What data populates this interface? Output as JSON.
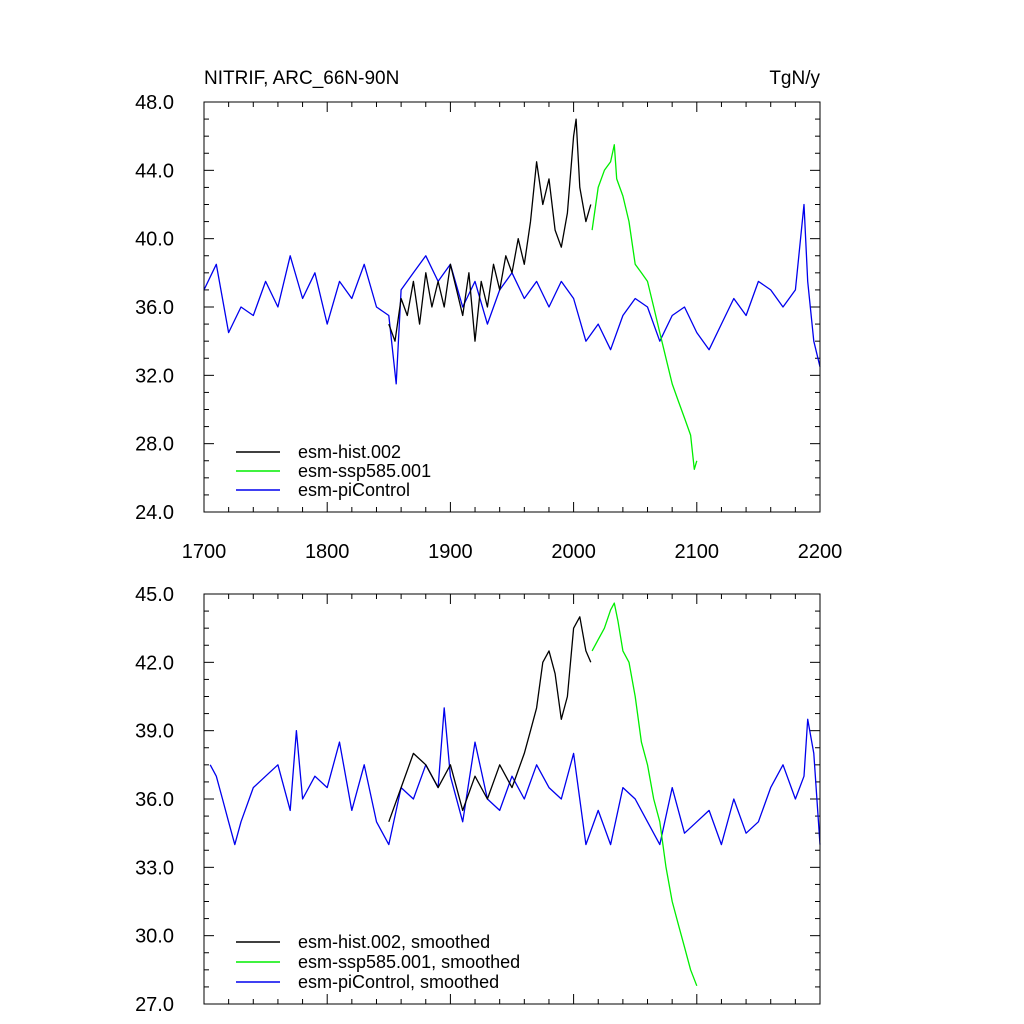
{
  "chart_data": [
    {
      "type": "line",
      "title": "NITRIF, ARC_66N-90N",
      "units": "TgN/y",
      "xlim": [
        1700,
        2200
      ],
      "ylim": [
        24,
        48
      ],
      "xticks": [
        "1700",
        "1800",
        "1900",
        "2000",
        "2100",
        "2200"
      ],
      "yticks": [
        "24.0",
        "28.0",
        "32.0",
        "36.0",
        "40.0",
        "44.0",
        "48.0"
      ],
      "legend_position": "bottom-left",
      "series": [
        {
          "name": "esm-hist.002",
          "color": "#000000",
          "x": [
            1850,
            1855,
            1860,
            1865,
            1870,
            1875,
            1880,
            1885,
            1890,
            1895,
            1900,
            1905,
            1910,
            1915,
            1920,
            1925,
            1930,
            1935,
            1940,
            1945,
            1950,
            1955,
            1960,
            1965,
            1970,
            1975,
            1980,
            1985,
            1990,
            1995,
            2000,
            2002,
            2005,
            2010,
            2014
          ],
          "y": [
            35.0,
            34.0,
            36.5,
            35.5,
            37.5,
            35.0,
            38.0,
            36.0,
            37.5,
            36.0,
            38.5,
            37.0,
            35.5,
            38.0,
            34.0,
            37.5,
            36.0,
            38.5,
            37.0,
            39.0,
            38.0,
            40.0,
            38.5,
            41.0,
            44.5,
            42.0,
            43.5,
            40.5,
            39.5,
            41.5,
            46.0,
            47.0,
            43.0,
            41.0,
            42.0
          ]
        },
        {
          "name": "esm-ssp585.001",
          "color": "#00ee00",
          "x": [
            2015,
            2020,
            2025,
            2030,
            2033,
            2035,
            2040,
            2045,
            2050,
            2055,
            2060,
            2065,
            2070,
            2075,
            2080,
            2085,
            2090,
            2095,
            2098,
            2100
          ],
          "y": [
            40.5,
            43.0,
            44.0,
            44.5,
            45.5,
            43.5,
            42.5,
            41.0,
            38.5,
            38.0,
            37.5,
            36.0,
            34.5,
            33.0,
            31.5,
            30.5,
            29.5,
            28.5,
            26.5,
            27.0
          ]
        },
        {
          "name": "esm-piControl",
          "color": "#0000ee",
          "x": [
            1700,
            1710,
            1720,
            1730,
            1740,
            1750,
            1760,
            1770,
            1780,
            1790,
            1800,
            1810,
            1820,
            1830,
            1840,
            1850,
            1856,
            1860,
            1870,
            1880,
            1890,
            1900,
            1910,
            1920,
            1930,
            1940,
            1950,
            1960,
            1970,
            1980,
            1990,
            2000,
            2010,
            2020,
            2030,
            2040,
            2050,
            2060,
            2070,
            2080,
            2090,
            2100,
            2110,
            2120,
            2130,
            2140,
            2150,
            2160,
            2170,
            2180,
            2187,
            2190,
            2195,
            2200
          ],
          "y": [
            37.0,
            38.5,
            34.5,
            36.0,
            35.5,
            37.5,
            36.0,
            39.0,
            36.5,
            38.0,
            35.0,
            37.5,
            36.5,
            38.5,
            36.0,
            35.5,
            31.5,
            37.0,
            38.0,
            39.0,
            37.5,
            38.5,
            36.0,
            37.5,
            35.0,
            37.0,
            38.0,
            36.5,
            37.5,
            36.0,
            37.5,
            36.5,
            34.0,
            35.0,
            33.5,
            35.5,
            36.5,
            36.0,
            34.0,
            35.5,
            36.0,
            34.5,
            33.5,
            35.0,
            36.5,
            35.5,
            37.5,
            37.0,
            36.0,
            37.0,
            42.0,
            37.5,
            34.0,
            32.5
          ]
        }
      ]
    },
    {
      "type": "line",
      "title": "",
      "xlim": [
        1700,
        2200
      ],
      "ylim": [
        27,
        45
      ],
      "xticks": [],
      "yticks": [
        "27.0",
        "30.0",
        "33.0",
        "36.0",
        "39.0",
        "42.0",
        "45.0"
      ],
      "legend_position": "bottom-left",
      "series": [
        {
          "name": "esm-hist.002, smoothed",
          "color": "#000000",
          "x": [
            1850,
            1860,
            1870,
            1880,
            1890,
            1900,
            1910,
            1920,
            1930,
            1940,
            1950,
            1960,
            1965,
            1970,
            1975,
            1980,
            1985,
            1990,
            1995,
            2000,
            2005,
            2010,
            2014
          ],
          "y": [
            35.0,
            36.5,
            38.0,
            37.5,
            36.5,
            37.5,
            35.5,
            37.0,
            36.0,
            37.5,
            36.5,
            38.0,
            39.0,
            40.0,
            42.0,
            42.5,
            41.5,
            39.5,
            40.5,
            43.5,
            44.0,
            42.5,
            42.0
          ]
        },
        {
          "name": "esm-ssp585.001, smoothed",
          "color": "#00ee00",
          "x": [
            2015,
            2020,
            2025,
            2030,
            2033,
            2036,
            2040,
            2045,
            2050,
            2055,
            2060,
            2065,
            2070,
            2075,
            2080,
            2085,
            2090,
            2095,
            2100
          ],
          "y": [
            42.5,
            43.0,
            43.5,
            44.3,
            44.6,
            43.8,
            42.5,
            42.0,
            40.5,
            38.5,
            37.5,
            36.0,
            35.0,
            33.0,
            31.5,
            30.5,
            29.5,
            28.5,
            27.8
          ]
        },
        {
          "name": "esm-piControl, smoothed",
          "color": "#0000ee",
          "x": [
            1705,
            1710,
            1715,
            1720,
            1725,
            1730,
            1740,
            1750,
            1760,
            1770,
            1775,
            1780,
            1790,
            1800,
            1810,
            1820,
            1830,
            1840,
            1850,
            1860,
            1870,
            1880,
            1890,
            1895,
            1900,
            1910,
            1920,
            1930,
            1940,
            1950,
            1960,
            1970,
            1980,
            1990,
            2000,
            2010,
            2020,
            2030,
            2040,
            2050,
            2060,
            2070,
            2080,
            2090,
            2100,
            2110,
            2120,
            2130,
            2140,
            2150,
            2160,
            2170,
            2180,
            2187,
            2190,
            2195,
            2200
          ],
          "y": [
            37.5,
            37.0,
            36.0,
            35.0,
            34.0,
            35.0,
            36.5,
            37.0,
            37.5,
            35.5,
            39.0,
            36.0,
            37.0,
            36.5,
            38.5,
            35.5,
            37.5,
            35.0,
            34.0,
            36.5,
            36.0,
            37.5,
            36.5,
            40.0,
            37.0,
            35.0,
            38.5,
            36.0,
            35.5,
            37.0,
            36.0,
            37.5,
            36.5,
            36.0,
            38.0,
            34.0,
            35.5,
            34.0,
            36.5,
            36.0,
            35.0,
            34.0,
            36.5,
            34.5,
            35.0,
            35.5,
            34.0,
            36.0,
            34.5,
            35.0,
            36.5,
            37.5,
            36.0,
            37.0,
            39.5,
            38.0,
            34.0
          ]
        }
      ]
    }
  ]
}
